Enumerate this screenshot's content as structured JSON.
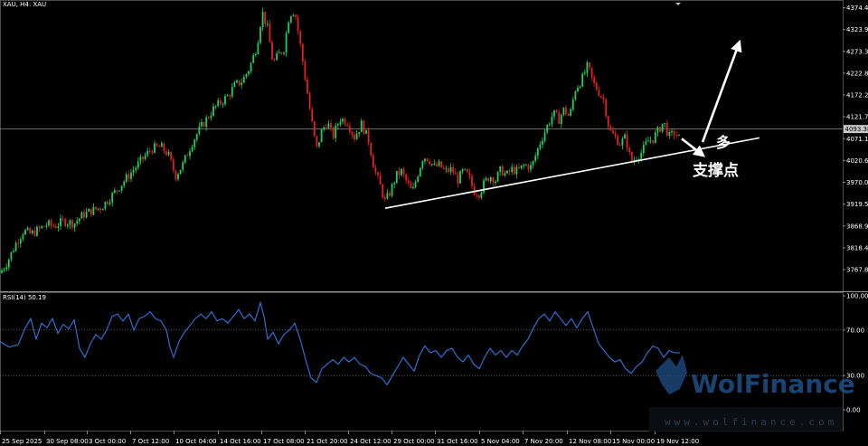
{
  "chart_data": [
    {
      "type": "candlestick",
      "symbol_label": "XAU, H4:  XAU",
      "ylim": [
        3740,
        4382
      ],
      "y_ticks": [
        4374.45,
        4323.9,
        4273.35,
        4222.8,
        4172.25,
        4121.7,
        4071.15,
        4020.6,
        3970.05,
        3919.5,
        3868.95,
        3818.4,
        3767.85
      ],
      "y_tick_labels": [
        "4374.45",
        "4323.90",
        "4273.35",
        "4222.80",
        "4172.25",
        "4121.70",
        "4071.15",
        "4020.60",
        "3970.05",
        "3919.50",
        "3868.95",
        "3818.40",
        "3767.85"
      ],
      "current_price": 4093.38,
      "current_price_label": "4093.38",
      "x_labels": [
        "25 Sep 2025",
        "30 Sep 08:00",
        "3 Oct 00:00",
        "7 Oct 12:00",
        "10 Oct 04:00",
        "14 Oct 16:00",
        "17 Oct 08:00",
        "21 Oct 20:00",
        "24 Oct 12:00",
        "29 Oct 00:00",
        "31 Oct 16:00",
        "5 Nov 04:00",
        "7 Nov 20:00",
        "12 Nov 08:00",
        "15 Nov 00:00",
        "19 Nov 12:00"
      ],
      "price_path": [
        [
          0,
          3760
        ],
        [
          8,
          3785
        ],
        [
          18,
          3830
        ],
        [
          26,
          3858
        ],
        [
          34,
          3850
        ],
        [
          44,
          3862
        ],
        [
          52,
          3873
        ],
        [
          60,
          3868
        ],
        [
          70,
          3880
        ],
        [
          82,
          3875
        ],
        [
          92,
          3895
        ],
        [
          102,
          3905
        ],
        [
          112,
          3912
        ],
        [
          122,
          3935
        ],
        [
          132,
          3960
        ],
        [
          142,
          3985
        ],
        [
          152,
          4010
        ],
        [
          160,
          4030
        ],
        [
          168,
          4048
        ],
        [
          178,
          4052
        ],
        [
          186,
          4035
        ],
        [
          194,
          3985
        ],
        [
          202,
          4010
        ],
        [
          212,
          4060
        ],
        [
          220,
          4090
        ],
        [
          228,
          4115
        ],
        [
          236,
          4140
        ],
        [
          244,
          4155
        ],
        [
          252,
          4170
        ],
        [
          260,
          4195
        ],
        [
          268,
          4205
        ],
        [
          276,
          4235
        ],
        [
          284,
          4285
        ],
        [
          290,
          4365
        ],
        [
          296,
          4325
        ],
        [
          302,
          4245
        ],
        [
          308,
          4265
        ],
        [
          314,
          4280
        ],
        [
          320,
          4360
        ],
        [
          326,
          4368
        ],
        [
          332,
          4290
        ],
        [
          338,
          4205
        ],
        [
          344,
          4120
        ],
        [
          350,
          4045
        ],
        [
          356,
          4090
        ],
        [
          362,
          4110
        ],
        [
          368,
          4075
        ],
        [
          376,
          4118
        ],
        [
          384,
          4110
        ],
        [
          392,
          4075
        ],
        [
          400,
          4105
        ],
        [
          408,
          4065
        ],
        [
          414,
          4000
        ],
        [
          420,
          3965
        ],
        [
          426,
          3925
        ],
        [
          432,
          3950
        ],
        [
          438,
          3985
        ],
        [
          444,
          3995
        ],
        [
          450,
          3970
        ],
        [
          456,
          3945
        ],
        [
          462,
          3990
        ],
        [
          468,
          4030
        ],
        [
          474,
          4025
        ],
        [
          480,
          4005
        ],
        [
          486,
          4010
        ],
        [
          492,
          3995
        ],
        [
          500,
          4000
        ],
        [
          506,
          3975
        ],
        [
          512,
          3995
        ],
        [
          518,
          3985
        ],
        [
          524,
          3950
        ],
        [
          530,
          3945
        ],
        [
          536,
          3970
        ],
        [
          542,
          3985
        ],
        [
          548,
          3975
        ],
        [
          554,
          4000
        ],
        [
          560,
          3985
        ],
        [
          566,
          4000
        ],
        [
          572,
          3995
        ],
        [
          580,
          4010
        ],
        [
          588,
          4005
        ],
        [
          596,
          4055
        ],
        [
          604,
          4095
        ],
        [
          612,
          4130
        ],
        [
          618,
          4115
        ],
        [
          624,
          4140
        ],
        [
          630,
          4120
        ],
        [
          636,
          4185
        ],
        [
          644,
          4210
        ],
        [
          650,
          4240
        ],
        [
          656,
          4200
        ],
        [
          662,
          4180
        ],
        [
          668,
          4160
        ],
        [
          674,
          4090
        ],
        [
          680,
          4075
        ],
        [
          686,
          4060
        ],
        [
          692,
          4075
        ],
        [
          698,
          4015
        ],
        [
          704,
          4030
        ],
        [
          710,
          4040
        ],
        [
          716,
          4065
        ],
        [
          722,
          4070
        ],
        [
          728,
          4090
        ],
        [
          734,
          4110
        ],
        [
          740,
          4075
        ],
        [
          746,
          4085
        ],
        [
          752,
          4070
        ]
      ],
      "trendline": {
        "from": [
          426,
          3910
        ],
        "to": [
          840,
          4073
        ]
      },
      "arrows": [
        {
          "from": [
            754,
            4071
          ],
          "to": [
            776,
            4035
          ]
        },
        {
          "from": [
            777,
            4063
          ],
          "to": [
            817,
            4290
          ]
        }
      ],
      "annotations": [
        "多",
        "支撑点"
      ]
    },
    {
      "type": "line",
      "label": "RSI(14) 50.19",
      "ylim": [
        0,
        100
      ],
      "y_ticks": [
        100,
        70,
        30,
        0
      ],
      "y_tick_labels": [
        "100.00",
        "70.00",
        "30.00",
        "0.00"
      ],
      "levels": [
        70,
        30
      ],
      "color": "#2f77e0",
      "points": [
        [
          0,
          60
        ],
        [
          10,
          55
        ],
        [
          20,
          57
        ],
        [
          28,
          72
        ],
        [
          34,
          80
        ],
        [
          40,
          62
        ],
        [
          46,
          76
        ],
        [
          52,
          72
        ],
        [
          58,
          80
        ],
        [
          64,
          67
        ],
        [
          70,
          75
        ],
        [
          76,
          71
        ],
        [
          82,
          79
        ],
        [
          88,
          54
        ],
        [
          94,
          46
        ],
        [
          100,
          58
        ],
        [
          106,
          66
        ],
        [
          112,
          62
        ],
        [
          118,
          70
        ],
        [
          124,
          82
        ],
        [
          130,
          84
        ],
        [
          136,
          78
        ],
        [
          142,
          84
        ],
        [
          148,
          70
        ],
        [
          154,
          80
        ],
        [
          160,
          82
        ],
        [
          166,
          86
        ],
        [
          172,
          80
        ],
        [
          178,
          78
        ],
        [
          184,
          70
        ],
        [
          188,
          55
        ],
        [
          192,
          46
        ],
        [
          198,
          60
        ],
        [
          204,
          68
        ],
        [
          210,
          74
        ],
        [
          216,
          80
        ],
        [
          222,
          84
        ],
        [
          228,
          80
        ],
        [
          234,
          86
        ],
        [
          240,
          78
        ],
        [
          246,
          80
        ],
        [
          252,
          76
        ],
        [
          258,
          82
        ],
        [
          264,
          88
        ],
        [
          270,
          80
        ],
        [
          276,
          84
        ],
        [
          282,
          78
        ],
        [
          288,
          94
        ],
        [
          292,
          82
        ],
        [
          296,
          62
        ],
        [
          302,
          68
        ],
        [
          308,
          58
        ],
        [
          314,
          66
        ],
        [
          320,
          70
        ],
        [
          326,
          76
        ],
        [
          332,
          62
        ],
        [
          338,
          44
        ],
        [
          344,
          28
        ],
        [
          350,
          24
        ],
        [
          356,
          36
        ],
        [
          362,
          40
        ],
        [
          368,
          44
        ],
        [
          374,
          40
        ],
        [
          380,
          46
        ],
        [
          386,
          42
        ],
        [
          392,
          46
        ],
        [
          398,
          40
        ],
        [
          404,
          38
        ],
        [
          410,
          32
        ],
        [
          416,
          30
        ],
        [
          422,
          28
        ],
        [
          428,
          22
        ],
        [
          434,
          30
        ],
        [
          440,
          38
        ],
        [
          446,
          46
        ],
        [
          452,
          40
        ],
        [
          458,
          34
        ],
        [
          464,
          48
        ],
        [
          470,
          56
        ],
        [
          476,
          50
        ],
        [
          482,
          52
        ],
        [
          488,
          46
        ],
        [
          494,
          52
        ],
        [
          500,
          54
        ],
        [
          506,
          46
        ],
        [
          512,
          42
        ],
        [
          518,
          48
        ],
        [
          524,
          40
        ],
        [
          530,
          36
        ],
        [
          536,
          46
        ],
        [
          542,
          54
        ],
        [
          548,
          48
        ],
        [
          554,
          52
        ],
        [
          560,
          46
        ],
        [
          566,
          52
        ],
        [
          572,
          48
        ],
        [
          578,
          56
        ],
        [
          584,
          62
        ],
        [
          590,
          72
        ],
        [
          596,
          80
        ],
        [
          602,
          84
        ],
        [
          608,
          78
        ],
        [
          614,
          86
        ],
        [
          620,
          80
        ],
        [
          626,
          74
        ],
        [
          632,
          80
        ],
        [
          638,
          72
        ],
        [
          644,
          80
        ],
        [
          650,
          86
        ],
        [
          656,
          72
        ],
        [
          662,
          58
        ],
        [
          668,
          52
        ],
        [
          674,
          46
        ],
        [
          680,
          42
        ],
        [
          686,
          44
        ],
        [
          692,
          36
        ],
        [
          698,
          32
        ],
        [
          704,
          38
        ],
        [
          710,
          42
        ],
        [
          716,
          50
        ],
        [
          722,
          56
        ],
        [
          728,
          54
        ],
        [
          734,
          46
        ],
        [
          740,
          52
        ],
        [
          746,
          50
        ],
        [
          752,
          50
        ]
      ]
    }
  ],
  "watermark": {
    "brand": "WolFinance",
    "url": "www.wolfinance.com"
  }
}
